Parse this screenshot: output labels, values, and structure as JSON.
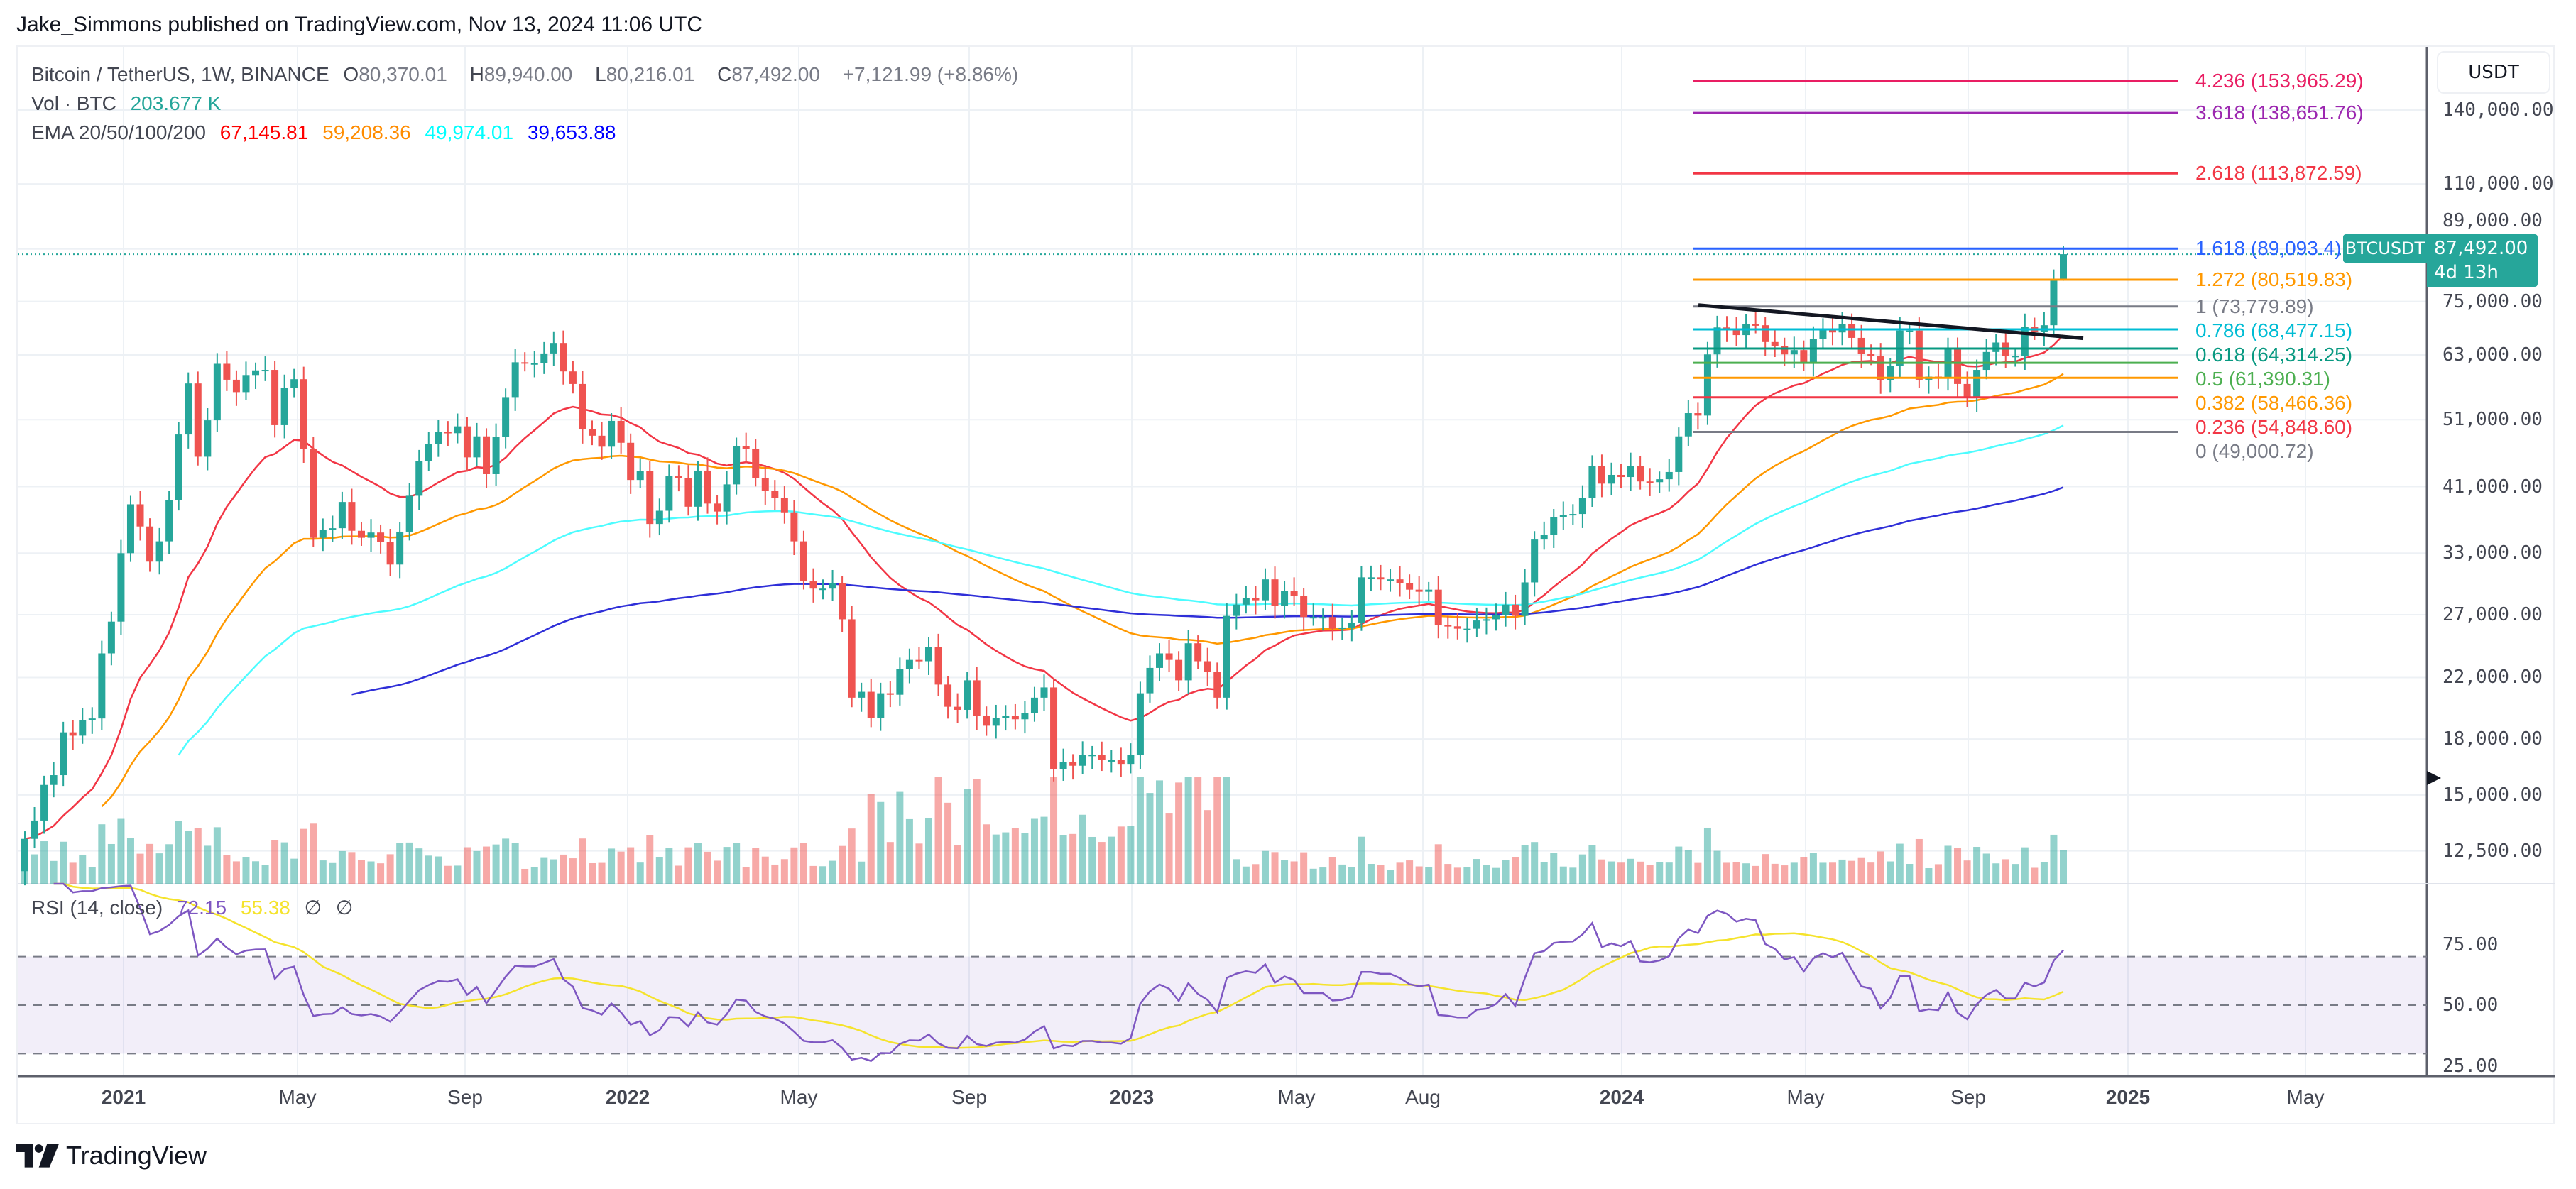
{
  "publisher": "Jake_Simmons published on TradingView.com, Nov 13, 2024 11:06 UTC",
  "legend": {
    "symbol": "Bitcoin / TetherUS, 1W, BINANCE",
    "open_label": "O",
    "open": "80,370.01",
    "high_label": "H",
    "high": "89,940.00",
    "low_label": "L",
    "low": "80,216.01",
    "close_label": "C",
    "close": "87,492.00",
    "change": "+7,121.99 (+8.86%)",
    "vol_label": "Vol · BTC",
    "vol": "203.677 K",
    "ema_label": "EMA 20/50/100/200",
    "ema20": "67,145.81",
    "ema50": "59,208.36",
    "ema100": "49,974.01",
    "ema200": "39,653.88"
  },
  "colors": {
    "up": "#26a69a",
    "down": "#ef5350",
    "ema20": "#f23645",
    "ema50": "#ff9800",
    "ema100": "#4dfcff",
    "ema200": "#2f2fd8",
    "rsi": "#7e57c2",
    "rsi_ma": "#f5e32c",
    "badge": "#26a69a"
  },
  "price_axis": {
    "currency": "USDT",
    "scale": "log",
    "ticks": [
      "140,000.00",
      "110,000.00",
      "89,000.00",
      "75,000.00",
      "63,000.00",
      "51,000.00",
      "41,000.00",
      "33,000.00",
      "27,000.00",
      "22,000.00",
      "18,000.00",
      "15,000.00",
      "12,500.00"
    ],
    "tick_values": [
      140000,
      110000,
      89000,
      75000,
      63000,
      51000,
      41000,
      33000,
      27000,
      22000,
      18000,
      15000,
      12500
    ]
  },
  "price_badge": {
    "symbol": "BTCUSDT",
    "price": "87,492.00",
    "countdown": "4d 13h"
  },
  "time_axis": {
    "ticks": [
      "2021",
      "May",
      "Sep",
      "2022",
      "May",
      "Sep",
      "2023",
      "May",
      "Aug",
      "2024",
      "May",
      "Sep",
      "2025",
      "May"
    ]
  },
  "fibonacci": [
    {
      "level": "4.236",
      "price": "153,965.29",
      "value": 153965.29,
      "color": "#e91e63"
    },
    {
      "level": "3.618",
      "price": "138,651.76",
      "value": 138651.76,
      "color": "#9c27b0"
    },
    {
      "level": "2.618",
      "price": "113,872.59",
      "value": 113872.59,
      "color": "#f23645"
    },
    {
      "level": "1.618",
      "price": "89,093.4",
      "value": 89093.4,
      "color": "#2962ff"
    },
    {
      "level": "1.272",
      "price": "80,519.83",
      "value": 80519.83,
      "color": "#ff9800"
    },
    {
      "level": "1",
      "price": "73,779.89",
      "value": 73779.89,
      "color": "#787b86"
    },
    {
      "level": "0.786",
      "price": "68,477.15",
      "value": 68477.15,
      "color": "#00bcd4"
    },
    {
      "level": "0.618",
      "price": "64,314.25",
      "value": 64314.25,
      "color": "#089981"
    },
    {
      "level": "0.5",
      "price": "61,390.31",
      "value": 61390.31,
      "color": "#4caf50"
    },
    {
      "level": "0.382",
      "price": "58,466.36",
      "value": 58466.36,
      "color": "#ff9800"
    },
    {
      "level": "0.236",
      "price": "54,848.60",
      "value": 54848.6,
      "color": "#f23645"
    },
    {
      "level": "0",
      "price": "49,000.72",
      "value": 49000.72,
      "color": "#787b86"
    }
  ],
  "rsi": {
    "label": "RSI (14, close)",
    "value": "72.15",
    "ma_value": "55.38",
    "na1": "∅",
    "na2": "∅",
    "ticks": [
      "75.00",
      "50.00",
      "25.00"
    ],
    "tick_values": [
      75,
      50,
      25
    ],
    "bands": [
      70,
      50,
      30
    ]
  },
  "brand": "TradingView",
  "chart_data": {
    "type": "candlestick",
    "timeframe": "1W",
    "first_week": "2020-10-19",
    "last_week": "2024-11-11",
    "last_candle": {
      "open": 80370.01,
      "high": 89940.0,
      "low": 80216.01,
      "close": 87492.0
    },
    "closes": [
      13000,
      13800,
      15500,
      16000,
      18400,
      18200,
      19150,
      19250,
      23800,
      26400,
      33000,
      38700,
      36000,
      32100,
      34300,
      39200,
      48600,
      57400,
      45200,
      50900,
      61200,
      58100,
      55800,
      59000,
      59900,
      60000,
      50100,
      56600,
      58200,
      46400,
      34700,
      35600,
      35800,
      39000,
      35500,
      34700,
      35300,
      34200,
      31800,
      35400,
      39800,
      44600,
      47100,
      49000,
      48800,
      49900,
      45100,
      48300,
      42700,
      48200,
      54900,
      61500,
      61300,
      61300,
      63300,
      65500,
      59700,
      57300,
      49400,
      48400,
      46700,
      50800,
      47300,
      41900,
      43100,
      36300,
      37900,
      42400,
      42200,
      38400,
      43200,
      38800,
      37800,
      41300,
      46800,
      46400,
      42200,
      40400,
      39500,
      37700,
      34300,
      30100,
      29400,
      29400,
      29900,
      26600,
      20600,
      21000,
      19300,
      20900,
      20800,
      22600,
      23300,
      23200,
      24300,
      21500,
      20000,
      19800,
      21800,
      19400,
      18800,
      19300,
      19400,
      19200,
      19600,
      20600,
      21300,
      16300,
      16700,
      16500,
      17100,
      17100,
      16800,
      16800,
      16600,
      17100,
      20900,
      22700,
      23800,
      23300,
      21800,
      24600,
      23200,
      22400,
      20600,
      26900,
      27900,
      28500,
      28300,
      30300,
      27800,
      29200,
      28700,
      26800,
      26800,
      26800,
      25800,
      25900,
      26300,
      30500,
      30500,
      30300,
      30300,
      29900,
      29300,
      29100,
      29300,
      26100,
      26000,
      25800,
      25800,
      26500,
      26600,
      27000,
      27900,
      26900,
      30000,
      34500,
      35000,
      37100,
      37400,
      37500,
      39500,
      43800,
      41400,
      42600,
      42300,
      43900,
      41700,
      41600,
      42000,
      43000,
      48300,
      52100,
      51700,
      63100,
      68900,
      68400,
      67200,
      69600,
      69400,
      65700,
      64900,
      63100,
      64000,
      61500,
      66300,
      68500,
      67800,
      69600,
      66600,
      63200,
      62700,
      58000,
      60800,
      68200,
      68200,
      58100,
      58700,
      58400,
      64200,
      57300,
      54800,
      60000,
      63600,
      65600,
      62800,
      62800,
      69000,
      67900,
      69400,
      80370,
      87492
    ],
    "indicators": [
      "EMA 20",
      "EMA 50",
      "EMA 100",
      "EMA 200",
      "Volume",
      "RSI 14"
    ],
    "trendline": {
      "from_price": 73779.89,
      "to_price": 66500
    }
  }
}
